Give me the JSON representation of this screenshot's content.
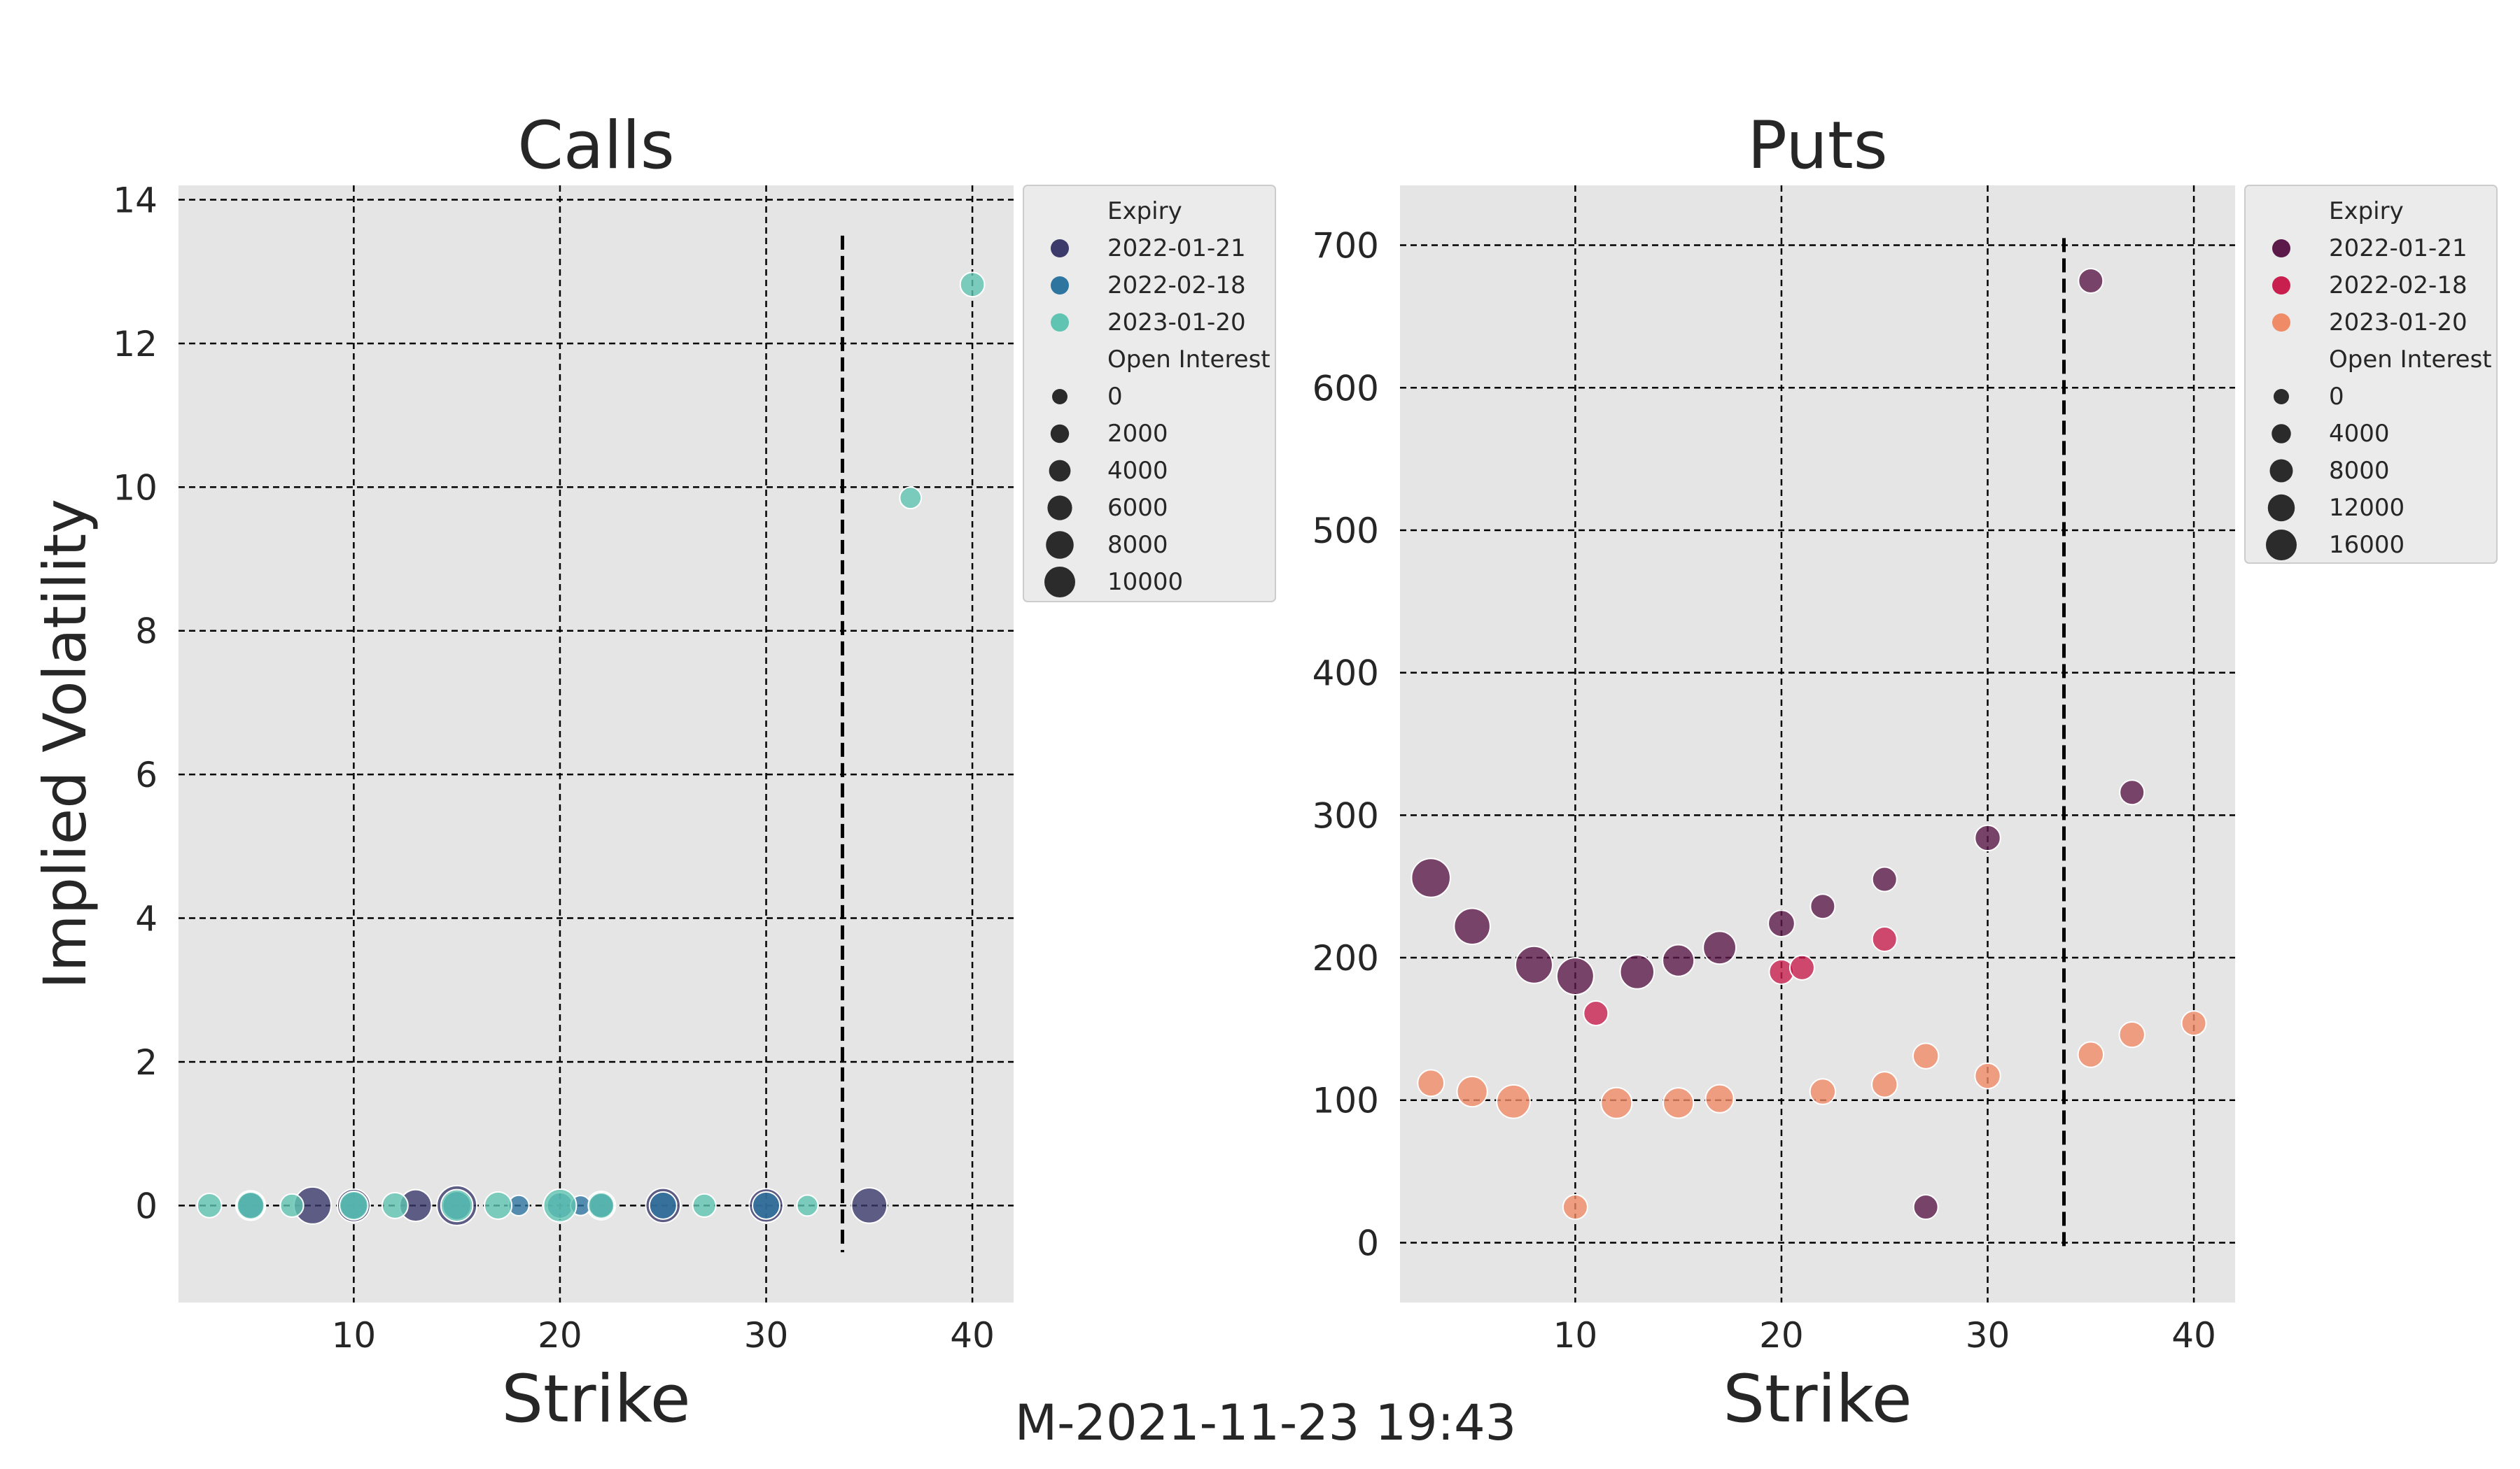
{
  "footer": "M-2021-11-23 19:43",
  "chart_data": [
    {
      "type": "scatter",
      "title": "Calls",
      "xlabel": "Strike",
      "ylabel": "Implied Volatility",
      "xlim": [
        1.5,
        42
      ],
      "ylim": [
        -1.35,
        14.2
      ],
      "xticks": [
        10,
        20,
        30,
        40
      ],
      "yticks": [
        0,
        2,
        4,
        6,
        8,
        10,
        12,
        14
      ],
      "grid": true,
      "current_price_line": {
        "x": 33.7,
        "y_range": [
          -0.65,
          13.5
        ]
      },
      "legend": {
        "position": "right",
        "hue_title": "Expiry",
        "hue_entries": [
          {
            "label": "2022-01-21",
            "color": "#3b3a6b"
          },
          {
            "label": "2022-02-18",
            "color": "#2e76a0"
          },
          {
            "label": "2023-01-20",
            "color": "#5fc4b2"
          }
        ],
        "size_title": "Open Interest",
        "size_entries": [
          "0",
          "2000",
          "4000",
          "6000",
          "8000",
          "10000"
        ],
        "size_max": 10000
      },
      "series": [
        {
          "name": "2022-01-21",
          "color": "#3b3a6b",
          "points": [
            {
              "x": 5,
              "y": 0,
              "oi": 3500
            },
            {
              "x": 8,
              "y": 0,
              "oi": 7500
            },
            {
              "x": 10,
              "y": 0,
              "oi": 5000
            },
            {
              "x": 13,
              "y": 0,
              "oi": 4500
            },
            {
              "x": 15,
              "y": 0,
              "oi": 9500
            },
            {
              "x": 22,
              "y": 0,
              "oi": 3000
            },
            {
              "x": 25,
              "y": 0,
              "oi": 6000
            },
            {
              "x": 30,
              "y": 0,
              "oi": 5500
            },
            {
              "x": 35,
              "y": 0,
              "oi": 6500
            }
          ]
        },
        {
          "name": "2022-02-18",
          "color": "#2e76a0",
          "points": [
            {
              "x": 5,
              "y": 0,
              "oi": 2000
            },
            {
              "x": 10,
              "y": 0,
              "oi": 2500
            },
            {
              "x": 15,
              "y": 0,
              "oi": 3000
            },
            {
              "x": 18,
              "y": 0,
              "oi": 600
            },
            {
              "x": 20,
              "y": 0,
              "oi": 2000
            },
            {
              "x": 21,
              "y": 0,
              "oi": 500
            },
            {
              "x": 22,
              "y": 0,
              "oi": 1500
            },
            {
              "x": 25,
              "y": 0,
              "oi": 2500
            },
            {
              "x": 30,
              "y": 0,
              "oi": 2500
            }
          ]
        },
        {
          "name": "2023-01-20",
          "color": "#5fc4b2",
          "points": [
            {
              "x": 3,
              "y": 0,
              "oi": 1500
            },
            {
              "x": 5,
              "y": 0,
              "oi": 2500
            },
            {
              "x": 7,
              "y": 0,
              "oi": 1200
            },
            {
              "x": 10,
              "y": 0,
              "oi": 3000
            },
            {
              "x": 12,
              "y": 0,
              "oi": 2000
            },
            {
              "x": 15,
              "y": 0,
              "oi": 4500
            },
            {
              "x": 17,
              "y": 0,
              "oi": 2500
            },
            {
              "x": 20,
              "y": 0,
              "oi": 5000
            },
            {
              "x": 22,
              "y": 0,
              "oi": 2000
            },
            {
              "x": 27,
              "y": 0,
              "oi": 1200
            },
            {
              "x": 32,
              "y": 0,
              "oi": 700
            },
            {
              "x": 37,
              "y": 9.85,
              "oi": 800
            },
            {
              "x": 40,
              "y": 12.82,
              "oi": 1500
            }
          ]
        }
      ]
    },
    {
      "type": "scatter",
      "title": "Puts",
      "xlabel": "Strike",
      "ylabel": "",
      "xlim": [
        1.5,
        42
      ],
      "ylim": [
        -42,
        742
      ],
      "xticks": [
        10,
        20,
        30,
        40
      ],
      "yticks": [
        0,
        100,
        200,
        300,
        400,
        500,
        600,
        700
      ],
      "grid": true,
      "current_price_line": {
        "x": 33.7,
        "y_range": [
          -5,
          705
        ]
      },
      "legend": {
        "position": "right",
        "hue_title": "Expiry",
        "hue_entries": [
          {
            "label": "2022-01-21",
            "color": "#5c1a4a"
          },
          {
            "label": "2022-02-18",
            "color": "#c81f4e"
          },
          {
            "label": "2023-01-20",
            "color": "#f08b68"
          }
        ],
        "size_title": "Open Interest",
        "size_entries": [
          "0",
          "4000",
          "8000",
          "12000",
          "16000"
        ],
        "size_max": 16000
      },
      "series": [
        {
          "name": "2022-01-21",
          "color": "#5c1a4a",
          "points": [
            {
              "x": 3,
              "y": 256,
              "oi": 14000
            },
            {
              "x": 5,
              "y": 222,
              "oi": 11000
            },
            {
              "x": 8,
              "y": 195,
              "oi": 12000
            },
            {
              "x": 10,
              "y": 187,
              "oi": 12000
            },
            {
              "x": 13,
              "y": 190,
              "oi": 9000
            },
            {
              "x": 15,
              "y": 198,
              "oi": 7000
            },
            {
              "x": 17,
              "y": 207,
              "oi": 8000
            },
            {
              "x": 20,
              "y": 224,
              "oi": 3500
            },
            {
              "x": 22,
              "y": 236,
              "oi": 2500
            },
            {
              "x": 25,
              "y": 255,
              "oi": 2500
            },
            {
              "x": 27,
              "y": 25,
              "oi": 2500
            },
            {
              "x": 30,
              "y": 284,
              "oi": 3000
            },
            {
              "x": 35,
              "y": 675,
              "oi": 2500
            },
            {
              "x": 37,
              "y": 316,
              "oi": 2500
            }
          ]
        },
        {
          "name": "2022-02-18",
          "color": "#c81f4e",
          "points": [
            {
              "x": 11,
              "y": 161,
              "oi": 2500
            },
            {
              "x": 20,
              "y": 190,
              "oi": 2500
            },
            {
              "x": 21,
              "y": 193,
              "oi": 2500
            },
            {
              "x": 25,
              "y": 213,
              "oi": 2500
            }
          ]
        },
        {
          "name": "2023-01-20",
          "color": "#f08b68",
          "points": [
            {
              "x": 3,
              "y": 112,
              "oi": 3500
            },
            {
              "x": 5,
              "y": 106,
              "oi": 6000
            },
            {
              "x": 7,
              "y": 99,
              "oi": 8500
            },
            {
              "x": 10,
              "y": 25,
              "oi": 2500
            },
            {
              "x": 12,
              "y": 98,
              "oi": 6500
            },
            {
              "x": 15,
              "y": 98,
              "oi": 6000
            },
            {
              "x": 17,
              "y": 101,
              "oi": 4500
            },
            {
              "x": 22,
              "y": 106,
              "oi": 3000
            },
            {
              "x": 25,
              "y": 111,
              "oi": 3000
            },
            {
              "x": 27,
              "y": 131,
              "oi": 3000
            },
            {
              "x": 30,
              "y": 117,
              "oi": 3000
            },
            {
              "x": 35,
              "y": 132,
              "oi": 3000
            },
            {
              "x": 37,
              "y": 146,
              "oi": 3000
            },
            {
              "x": 40,
              "y": 154,
              "oi": 2500
            }
          ]
        }
      ]
    }
  ]
}
